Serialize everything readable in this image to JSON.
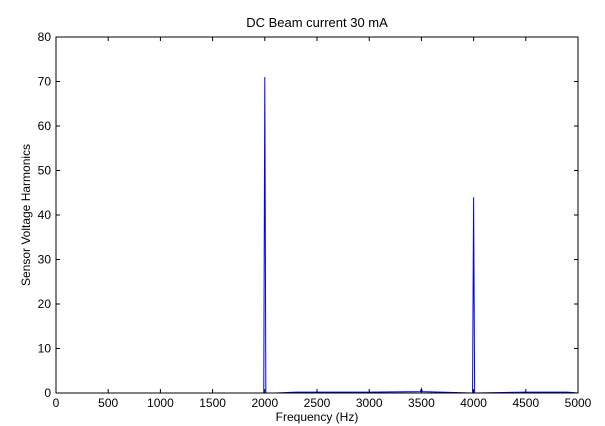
{
  "chart_data": {
    "type": "line",
    "title": "DC Beam current 30 mA",
    "xlabel": "Frequency (Hz)",
    "ylabel": "Sensor Voltage Harmonics",
    "xlim": [
      0,
      5000
    ],
    "ylim": [
      0,
      80
    ],
    "x_ticks": [
      0,
      500,
      1000,
      1500,
      2000,
      2500,
      3000,
      3500,
      4000,
      4500,
      5000
    ],
    "y_ticks": [
      0,
      10,
      20,
      30,
      40,
      50,
      60,
      70,
      80
    ],
    "grid": false,
    "legend": "none",
    "series": [
      {
        "color": "#0000ff",
        "x": [
          0,
          1900,
          1990,
          2000,
          2010,
          2100,
          2300,
          2500,
          3000,
          3490,
          3500,
          3510,
          3990,
          4000,
          4010,
          4500,
          4900,
          5000
        ],
        "y": [
          0,
          0,
          0,
          71,
          0,
          0,
          0.2,
          0.2,
          0.2,
          0.3,
          1.0,
          0.3,
          0,
          44,
          0,
          0.2,
          0.2,
          0
        ]
      }
    ]
  }
}
